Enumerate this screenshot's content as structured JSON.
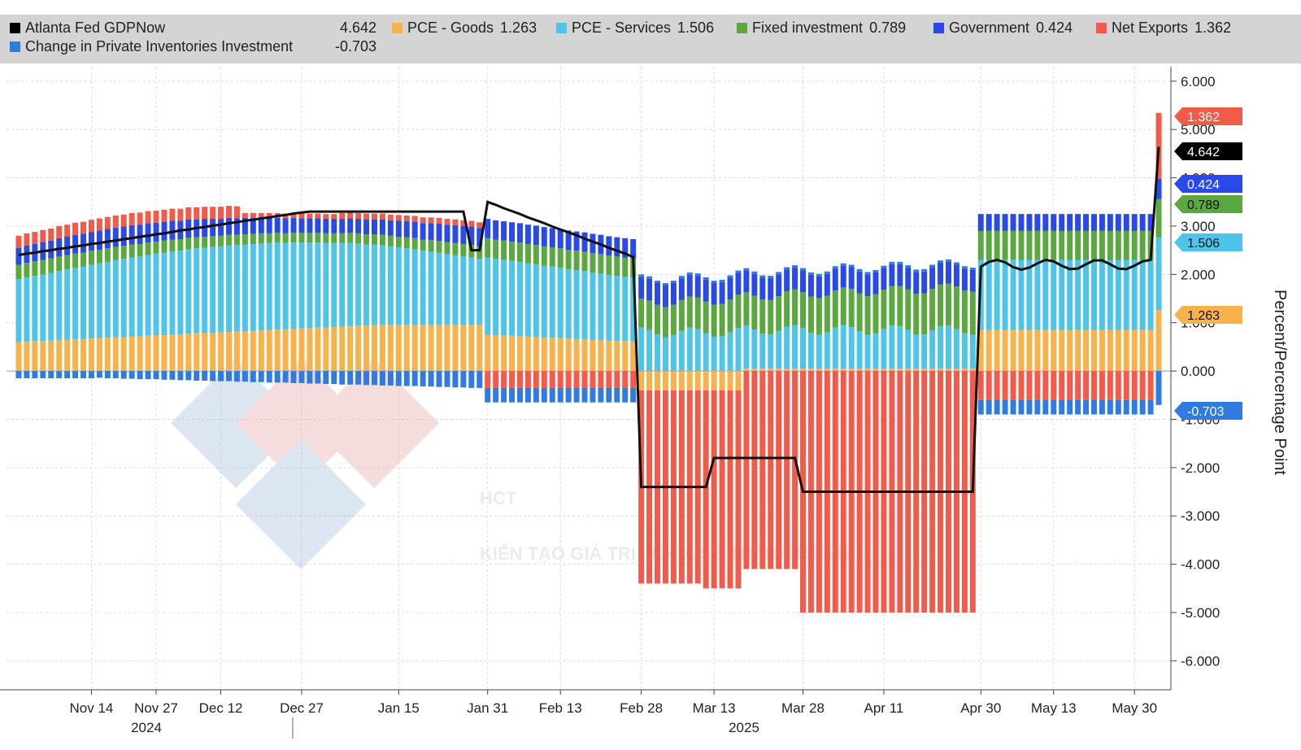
{
  "legend": {
    "items": [
      {
        "label": "Atlanta Fed GDPNow",
        "value": "4.642",
        "color": "#000000"
      },
      {
        "label": "PCE - Goods",
        "value": "1.263",
        "color": "#f8b24b"
      },
      {
        "label": "PCE - Services",
        "value": "1.506",
        "color": "#4ec4e8"
      },
      {
        "label": "Fixed investment",
        "value": "0.789",
        "color": "#5aa83f"
      },
      {
        "label": "Government",
        "value": "0.424",
        "color": "#2a49e6"
      },
      {
        "label": "Net Exports",
        "value": "1.362",
        "color": "#f25a4a"
      },
      {
        "label": "Change in Private Inventories Investment",
        "value": "-0.703",
        "color": "#2f7be0"
      }
    ]
  },
  "watermark": {
    "text": "KIẾN TẠO GIÁ TRỊ - CHIA SẺ THÀNH CÔNG",
    "logo_text": "HCT"
  },
  "chart_data": {
    "type": "bar",
    "stacked": true,
    "ylabel": "Percent/Percentage Point",
    "ylim": [
      -6.6,
      6.3
    ],
    "y_ticks": [
      "6.000",
      "5.000",
      "4.000",
      "3.000",
      "2.000",
      "1.000",
      "0.000",
      "-1.000",
      "-2.000",
      "-3.000",
      "-4.000",
      "-5.000",
      "-6.000"
    ],
    "y_tick_values": [
      6,
      5,
      4,
      3,
      2,
      1,
      0,
      -1,
      -2,
      -3,
      -4,
      -5,
      -6
    ],
    "x_ticks": [
      "Nov 14",
      "Nov 27",
      "Dec 12",
      "Dec 27",
      "Jan 15",
      "Jan 31",
      "Feb 13",
      "Feb 28",
      "Mar 13",
      "Mar 28",
      "Apr 11",
      "Apr 30",
      "May 13",
      "May 30"
    ],
    "year_labels": [
      "2024",
      "2025"
    ],
    "legend_position": "top",
    "grid": true,
    "last_value_tags": [
      {
        "series": "Net Exports",
        "value": "1.362"
      },
      {
        "series": "Atlanta Fed GDPNow",
        "value": "4.642"
      },
      {
        "series": "Government",
        "value": "0.424"
      },
      {
        "series": "Fixed investment",
        "value": "0.789"
      },
      {
        "series": "PCE - Services",
        "value": "1.506"
      },
      {
        "series": "PCE - Goods",
        "value": "1.263"
      },
      {
        "series": "Change in Private Inventories Investment",
        "value": "-0.703"
      }
    ],
    "series_order": [
      "PCE - Goods",
      "PCE - Services",
      "Fixed investment",
      "Government",
      "Net Exports",
      "Change in Private Inventories Investment"
    ],
    "x": [
      "2024-10-30",
      "2024-11-01",
      "2024-11-04",
      "2024-11-05",
      "2024-11-06",
      "2024-11-07",
      "2024-11-08",
      "2024-11-11",
      "2024-11-12",
      "2024-11-14",
      "2024-11-15",
      "2024-11-18",
      "2024-11-19",
      "2024-11-21",
      "2024-11-22",
      "2024-11-25",
      "2024-11-26",
      "2024-11-27",
      "2024-12-02",
      "2024-12-03",
      "2024-12-05",
      "2024-12-06",
      "2024-12-09",
      "2024-12-10",
      "2024-12-11",
      "2024-12-12",
      "2024-12-13",
      "2024-12-16",
      "2024-12-17",
      "2024-12-18",
      "2024-12-19",
      "2024-12-20",
      "2024-12-23",
      "2024-12-24",
      "2024-12-26",
      "2024-12-27",
      "2024-12-30",
      "2024-12-31",
      "2025-01-02",
      "2025-01-03",
      "2025-01-06",
      "2025-01-07",
      "2025-01-08",
      "2025-01-09",
      "2025-01-10",
      "2025-01-13",
      "2025-01-14",
      "2025-01-15",
      "2025-01-16",
      "2025-01-17",
      "2025-01-21",
      "2025-01-22",
      "2025-01-23",
      "2025-01-24",
      "2025-01-27",
      "2025-01-28",
      "2025-01-29",
      "2025-01-30",
      "2025-01-31",
      "2025-02-03",
      "2025-02-04",
      "2025-02-05",
      "2025-02-06",
      "2025-02-07",
      "2025-02-10",
      "2025-02-11",
      "2025-02-12",
      "2025-02-13",
      "2025-02-14",
      "2025-02-18",
      "2025-02-19",
      "2025-02-20",
      "2025-02-21",
      "2025-02-24",
      "2025-02-25",
      "2025-02-26",
      "2025-02-27",
      "2025-02-28",
      "2025-03-03",
      "2025-03-04",
      "2025-03-05",
      "2025-03-06",
      "2025-03-07",
      "2025-03-10",
      "2025-03-11",
      "2025-03-12",
      "2025-03-13",
      "2025-03-14",
      "2025-03-17",
      "2025-03-18",
      "2025-03-19",
      "2025-03-20",
      "2025-03-21",
      "2025-03-24",
      "2025-03-25",
      "2025-03-26",
      "2025-03-27",
      "2025-03-28",
      "2025-03-31",
      "2025-04-01",
      "2025-04-02",
      "2025-04-03",
      "2025-04-04",
      "2025-04-07",
      "2025-04-08",
      "2025-04-09",
      "2025-04-10",
      "2025-04-11",
      "2025-04-14",
      "2025-04-15",
      "2025-04-16",
      "2025-04-17",
      "2025-04-21",
      "2025-04-22",
      "2025-04-23",
      "2025-04-24",
      "2025-04-25",
      "2025-04-28",
      "2025-04-29",
      "2025-04-30",
      "2025-05-01",
      "2025-05-02",
      "2025-05-05",
      "2025-05-06",
      "2025-05-07",
      "2025-05-08",
      "2025-05-09",
      "2025-05-12",
      "2025-05-13",
      "2025-05-14",
      "2025-05-15",
      "2025-05-16",
      "2025-05-19",
      "2025-05-20",
      "2025-05-21",
      "2025-05-22",
      "2025-05-23",
      "2025-05-27",
      "2025-05-28",
      "2025-05-29",
      "2025-05-30",
      "2025-06-02"
    ],
    "series": []
  }
}
